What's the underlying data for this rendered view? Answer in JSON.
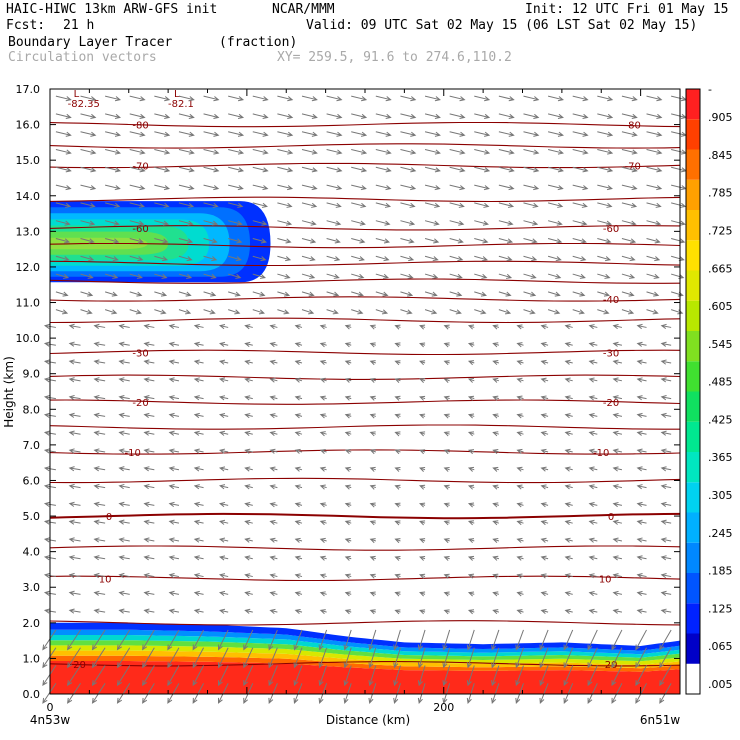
{
  "header": {
    "model": "HAIC-HIWC 13km ARW-GFS init",
    "org": "NCAR/MMM",
    "init": "Init: 12 UTC Fri 01 May 15",
    "fcst_label": "Fcst:",
    "fcst_value": "21 h",
    "valid": "Valid: 09 UTC Sat 02 May 15 (06 LST Sat 02 May 15)",
    "field_name": "Boundary Layer Tracer",
    "field_units": "(fraction)",
    "overlay_name": "Circulation vectors",
    "xy_range": "XY= 259.5, 91.6 to 274.6,110.2"
  },
  "chart_data": {
    "type": "heatmap",
    "title": "Boundary Layer Tracer (fraction)",
    "xlabel": "Distance (km)",
    "ylabel": "Height (km)",
    "xlim": [
      0,
      320
    ],
    "ylim": [
      0,
      17
    ],
    "grid": false,
    "legend": "right colorbar",
    "x_ticks": [
      {
        "value": 0,
        "label": "0"
      },
      {
        "value": 200,
        "label": "200"
      }
    ],
    "y_ticks": [
      "0.0",
      "1.0",
      "2.0",
      "3.0",
      "4.0",
      "5.0",
      "6.0",
      "7.0",
      "8.0",
      "9.0",
      "10.0",
      "11.0",
      "12.0",
      "13.0",
      "14.0",
      "15.0",
      "16.0",
      "17.0"
    ],
    "x_end_labels": [
      "4n53w",
      "6n51w"
    ],
    "colorbar": {
      "labels": [
        ".005",
        ".065",
        ".125",
        ".185",
        ".245",
        ".305",
        ".365",
        ".425",
        ".485",
        ".545",
        ".605",
        ".665",
        ".725",
        ".785",
        ".845",
        ".905",
        "-"
      ],
      "colors": [
        "#ffffff",
        "#0000c8",
        "#0022ff",
        "#0055ff",
        "#0088ff",
        "#00b0ff",
        "#00d2f0",
        "#00e6c0",
        "#00e890",
        "#10e060",
        "#40e030",
        "#80e020",
        "#b8e800",
        "#e0e800",
        "#ffe000",
        "#ffc000",
        "#ffa000",
        "#ff7000",
        "#ff4000",
        "#ff2020"
      ]
    },
    "tracer_layers": {
      "boundary_layer": {
        "top_km": [
          [
            0,
            2.0
          ],
          [
            40,
            2.0
          ],
          [
            80,
            1.95
          ],
          [
            120,
            1.85
          ],
          [
            150,
            1.62
          ],
          [
            180,
            1.45
          ],
          [
            220,
            1.4
          ],
          [
            260,
            1.45
          ],
          [
            300,
            1.35
          ],
          [
            320,
            1.5
          ]
        ],
        "bands_km": [
          [
            0.0,
            0.95,
            "#ff2a1a"
          ],
          [
            0.95,
            1.1,
            "#ff6a00"
          ],
          [
            1.1,
            1.25,
            "#ffc000"
          ],
          [
            1.25,
            1.4,
            "#d8e800"
          ],
          [
            1.4,
            1.55,
            "#60e040"
          ],
          [
            1.55,
            1.7,
            "#00d8d0"
          ],
          [
            1.7,
            1.85,
            "#0090ff"
          ],
          [
            1.85,
            2.05,
            "#0030ff"
          ]
        ]
      },
      "upper_plume": {
        "x_km": [
          0,
          112
        ],
        "center_km": 12.65,
        "half_depth_km": 1.2,
        "core_values": [
          "#0030ff",
          "#0070ff",
          "#00b8ff",
          "#00dcd0",
          "#20e090",
          "#60e050",
          "#90e040"
        ]
      }
    },
    "temperature_contours_c": [
      {
        "value": -82.35,
        "label": "-82.35",
        "kind": "low",
        "x": 12,
        "y": 16.6
      },
      {
        "value": -82.1,
        "label": "-82.1",
        "kind": "low",
        "x": 63,
        "y": 16.6
      },
      {
        "value": -80,
        "label": "-80",
        "y": 16.0,
        "label_x": [
          46,
          296
        ]
      },
      {
        "value": -75,
        "label": "",
        "y": 15.4
      },
      {
        "value": -70,
        "label": "-70",
        "y": 14.85,
        "label_x": [
          46,
          296
        ]
      },
      {
        "value": -65,
        "label": "",
        "y": 13.9
      },
      {
        "value": -60,
        "label": "-60",
        "y": 13.1,
        "label_x": [
          46,
          285
        ]
      },
      {
        "value": -55,
        "label": "",
        "y": 12.6
      },
      {
        "value": -50,
        "label": "",
        "y": 12.1
      },
      {
        "value": -45,
        "label": "",
        "y": 11.6
      },
      {
        "value": -40,
        "label": "-40",
        "y": 11.1,
        "label_x": [
          285
        ]
      },
      {
        "value": -35,
        "label": "",
        "y": 10.5
      },
      {
        "value": -30,
        "label": "-30",
        "y": 9.6,
        "label_x": [
          46,
          285
        ]
      },
      {
        "value": -25,
        "label": "",
        "y": 8.9
      },
      {
        "value": -20,
        "label": "-20",
        "y": 8.2,
        "label_x": [
          46,
          285
        ]
      },
      {
        "value": -15,
        "label": "",
        "y": 7.5
      },
      {
        "value": -10,
        "label": "-10",
        "y": 6.8,
        "label_x": [
          42,
          280
        ]
      },
      {
        "value": -5,
        "label": "",
        "y": 6.0
      },
      {
        "value": 0,
        "label": "0",
        "y": 5.0,
        "label_x": [
          30,
          285
        ]
      },
      {
        "value": 5,
        "label": "",
        "y": 4.1
      },
      {
        "value": 10,
        "label": "10",
        "y": 3.25,
        "label_x": [
          28,
          282
        ]
      },
      {
        "value": 15,
        "label": "",
        "y": 2.0
      },
      {
        "value": 20,
        "label": "20",
        "y": 0.85,
        "label_x": [
          15,
          285
        ]
      }
    ],
    "vectors": {
      "upper_direction": "eastward",
      "mid_direction": "westward",
      "lower_direction": "westward",
      "reversal_height_km": 10.5
    }
  }
}
